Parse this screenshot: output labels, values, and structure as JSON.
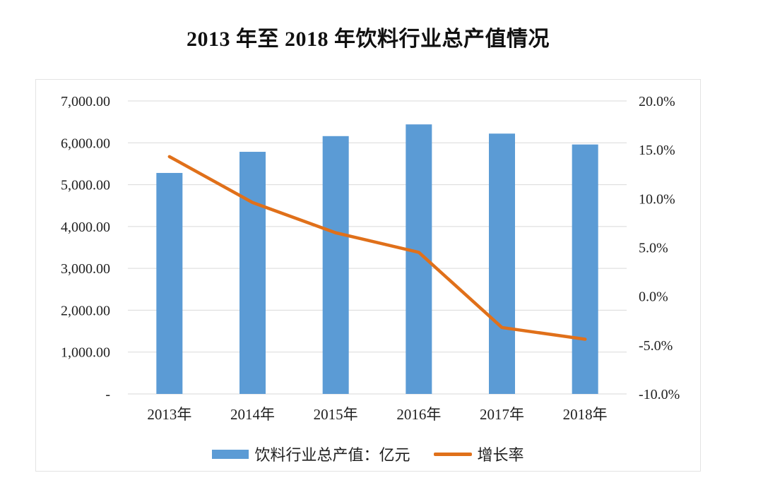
{
  "title": "2013 年至 2018 年饮料行业总产值情况",
  "colors": {
    "bar": "#5b9bd5",
    "line": "#e0701a",
    "gridline": "#d9d9d9",
    "border": "#e3e3e3",
    "text": "#1f1f1f"
  },
  "legend": {
    "bar_label": "饮料行业总产值：亿元",
    "line_label": "增长率"
  },
  "chart_data": {
    "type": "bar",
    "subtype": "combo bar+line, dual axis",
    "title": "2013 年至 2018 年饮料行业总产值情况",
    "categories": [
      "2013年",
      "2014年",
      "2015年",
      "2016年",
      "2017年",
      "2018年"
    ],
    "series": [
      {
        "name": "饮料行业总产值：亿元",
        "type": "bar",
        "axis": "left",
        "values": [
          5280,
          5785,
          6160,
          6440,
          6220,
          5960
        ]
      },
      {
        "name": "增长率",
        "type": "line",
        "axis": "right",
        "values": [
          14.3,
          9.6,
          6.5,
          4.5,
          -3.2,
          -4.4
        ]
      }
    ],
    "left_axis": {
      "min": 0,
      "max": 7000,
      "step": 1000,
      "tick_labels": [
        "7,000.00",
        "6,000.00",
        "5,000.00",
        "4,000.00",
        "3,000.00",
        "2,000.00",
        "1,000.00",
        "-"
      ]
    },
    "right_axis": {
      "min": -10,
      "max": 20,
      "step": 5,
      "tick_labels": [
        "20.0%",
        "15.0%",
        "10.0%",
        "5.0%",
        "0.0%",
        "-5.0%",
        "-10.0%"
      ]
    },
    "grid": true,
    "legend_position": "bottom",
    "xlabel": "",
    "ylabel": ""
  }
}
